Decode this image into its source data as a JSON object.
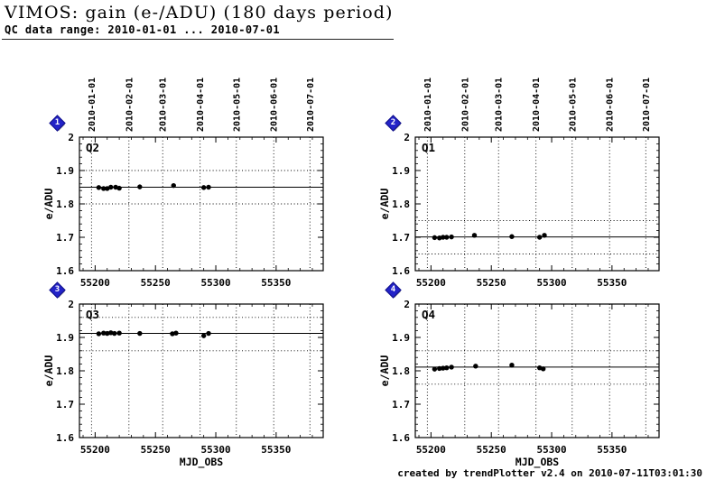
{
  "header": {
    "title": "VIMOS: gain (e-/ADU) (180 days period)",
    "subtitle": "QC data range: 2010-01-01 ... 2010-07-01"
  },
  "footer": {
    "credit": "created by trendPlotter v2.4 on 2010-07-11T03:01:30"
  },
  "markers": [
    {
      "label": "1"
    },
    {
      "label": "2"
    },
    {
      "label": "3"
    },
    {
      "label": "4"
    }
  ],
  "colors": {
    "marker_blue": "#2323c8",
    "marker_shadow": "#9a9a9a",
    "ink": "#000000"
  },
  "axis": {
    "xlabel": "MJD_OBS",
    "ylabel": "e/ADU",
    "xlim": [
      55187,
      55389
    ],
    "ylim": [
      1.6,
      2.0
    ],
    "x_ticks": [
      55200,
      55250,
      55300,
      55350
    ],
    "y_ticks": [
      1.6,
      1.7,
      1.8,
      1.9,
      2.0
    ],
    "y_tick_labels": [
      "1.6",
      "1.7",
      "1.8",
      "1.9",
      "2"
    ]
  },
  "date_axis": {
    "labels": [
      "2010-01-01",
      "2010-02-01",
      "2010-03-01",
      "2010-04-01",
      "2010-05-01",
      "2010-06-01",
      "2010-07-01"
    ],
    "mjd": [
      55197,
      55228,
      55256,
      55287,
      55317,
      55348,
      55378
    ]
  },
  "chart_data": [
    {
      "type": "scatter",
      "name": "Q2",
      "mean": 1.85,
      "thresholds": [
        1.8,
        1.9
      ],
      "points": {
        "x": [
          55203,
          55207,
          55210,
          55213,
          55217,
          55220,
          55237,
          55265,
          55290,
          55294
        ],
        "y": [
          1.849,
          1.846,
          1.846,
          1.85,
          1.85,
          1.847,
          1.851,
          1.855,
          1.849,
          1.85
        ]
      }
    },
    {
      "type": "scatter",
      "name": "Q1",
      "mean": 1.701,
      "thresholds": [
        1.65,
        1.75
      ],
      "points": {
        "x": [
          55203,
          55207,
          55210,
          55213,
          55217,
          55236,
          55267,
          55290,
          55294
        ],
        "y": [
          1.699,
          1.698,
          1.7,
          1.7,
          1.701,
          1.706,
          1.702,
          1.7,
          1.706
        ]
      }
    },
    {
      "type": "scatter",
      "name": "Q3",
      "mean": 1.912,
      "thresholds": [
        1.86,
        1.96
      ],
      "points": {
        "x": [
          55203,
          55207,
          55210,
          55213,
          55216,
          55220,
          55237,
          55264,
          55267,
          55290,
          55294
        ],
        "y": [
          1.911,
          1.913,
          1.912,
          1.914,
          1.912,
          1.913,
          1.912,
          1.911,
          1.913,
          1.905,
          1.912
        ]
      }
    },
    {
      "type": "scatter",
      "name": "Q4",
      "mean": 1.811,
      "thresholds": [
        1.76,
        1.86
      ],
      "points": {
        "x": [
          55203,
          55207,
          55210,
          55213,
          55217,
          55237,
          55267,
          55290,
          55293
        ],
        "y": [
          1.805,
          1.807,
          1.808,
          1.809,
          1.811,
          1.814,
          1.817,
          1.809,
          1.806
        ]
      }
    }
  ]
}
